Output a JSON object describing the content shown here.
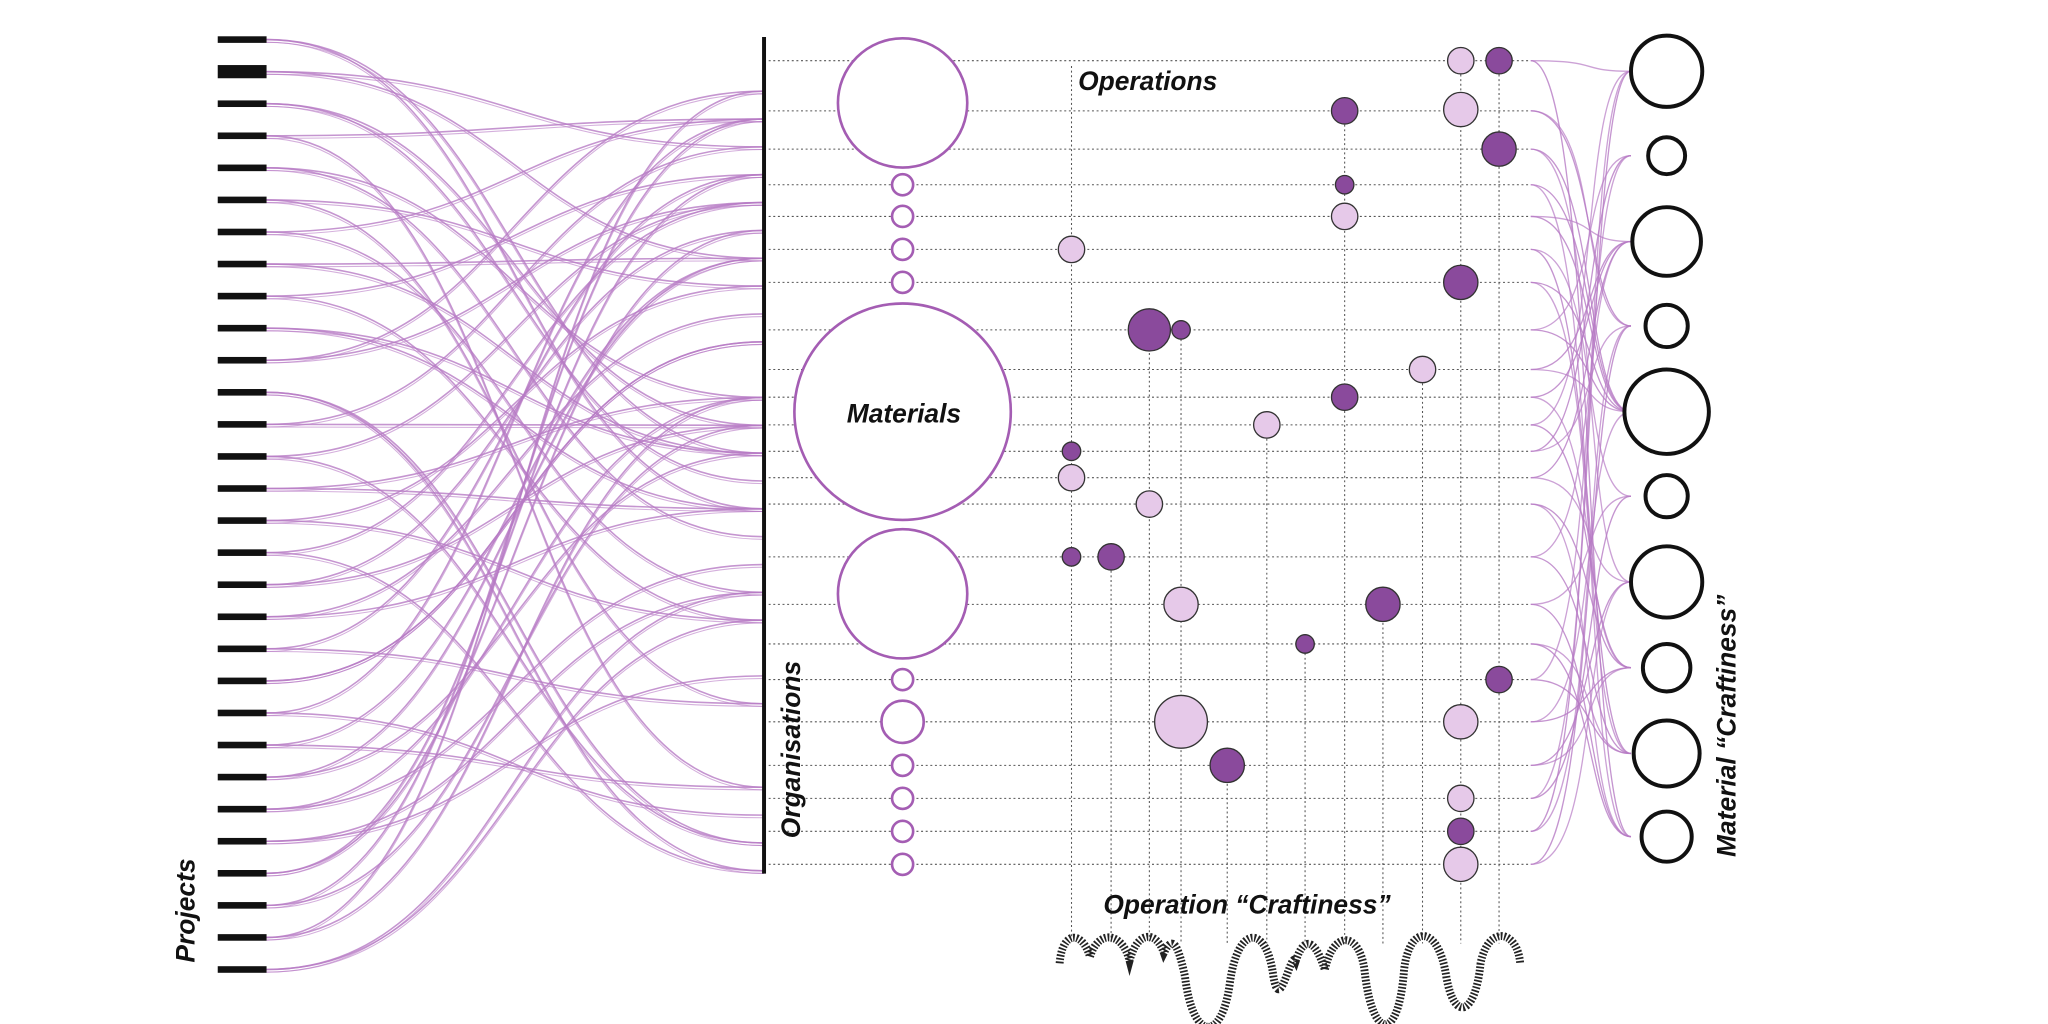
{
  "labels": {
    "projects": "Projects",
    "organisations": "Organisations",
    "materials": "Materials",
    "operations": "Operations",
    "operation_craftiness": "Operation “Craftiness”",
    "material_craftiness": "Material “Craftiness”"
  }
}
